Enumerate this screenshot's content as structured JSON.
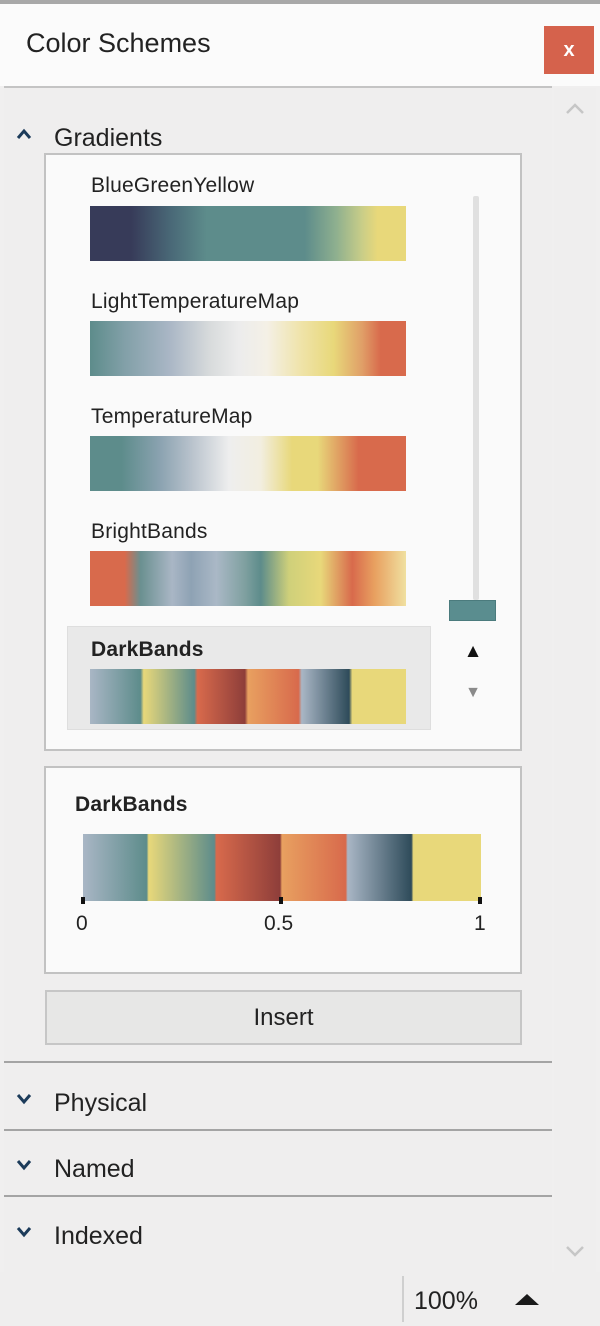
{
  "window": {
    "title": "Color Schemes",
    "close_label": "x"
  },
  "sections": {
    "gradients": {
      "label": "Gradients",
      "expanded": true
    },
    "physical": {
      "label": "Physical",
      "expanded": false
    },
    "named": {
      "label": "Named",
      "expanded": false
    },
    "indexed": {
      "label": "Indexed",
      "expanded": false
    }
  },
  "gradients": [
    {
      "name": "BlueGreenYellow",
      "selected": false
    },
    {
      "name": "LightTemperatureMap",
      "selected": false
    },
    {
      "name": "TemperatureMap",
      "selected": false
    },
    {
      "name": "BrightBands",
      "selected": false
    },
    {
      "name": "DarkBands",
      "selected": true
    }
  ],
  "scroll_arrows": {
    "up": "▲",
    "down": "▼"
  },
  "preview": {
    "name": "DarkBands",
    "ticks": [
      "0",
      "0.5",
      "1"
    ]
  },
  "insert_label": "Insert",
  "statusbar": {
    "zoom": "100%"
  },
  "colors": {
    "accent_close": "#d5624c",
    "thumb": "#5a8d8f",
    "dark_blue": "#373b59",
    "teal": "#5d8c8b",
    "light_steel": "#a9b6c5",
    "yellow": "#e8d87a",
    "orange_red": "#d86a4c"
  }
}
